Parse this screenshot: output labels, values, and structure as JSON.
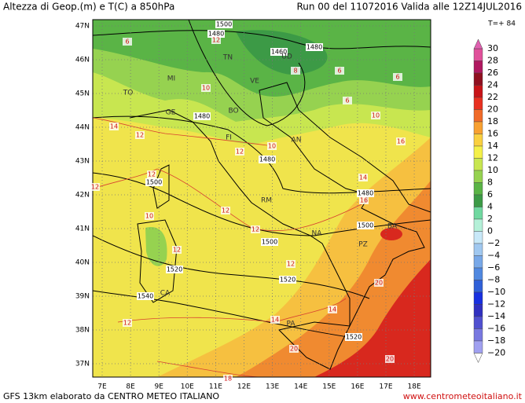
{
  "header": {
    "title": "Altezza di Geop.(m) e T(C) a 850hPa",
    "run": "Run 00 del 11072016  Valida alle 12Z14JUL2016",
    "forecast_step": "T=+ 84"
  },
  "map": {
    "lat_labels": [
      "47N",
      "46N",
      "45N",
      "44N",
      "43N",
      "42N",
      "41N",
      "40N",
      "39N",
      "38N",
      "37N"
    ],
    "lon_labels": [
      "7E",
      "8E",
      "9E",
      "10E",
      "11E",
      "12E",
      "13E",
      "14E",
      "15E",
      "16E",
      "17E",
      "18E"
    ],
    "height_labels": [
      "1500",
      "1480",
      "1460",
      "1480",
      "1480",
      "1480",
      "1500",
      "1480",
      "1500",
      "1500",
      "1520",
      "1520",
      "1540",
      "1520"
    ],
    "temperature_labels": [
      "6",
      "12",
      "8",
      "6",
      "6",
      "6",
      "10",
      "10",
      "16",
      "14",
      "12",
      "12",
      "10",
      "14",
      "12",
      "12",
      "16",
      "10",
      "12",
      "12",
      "12",
      "12",
      "20",
      "12",
      "14",
      "14",
      "20",
      "20",
      "18"
    ],
    "city_labels": [
      "TO",
      "MI",
      "TN",
      "UD",
      "VE",
      "BO",
      "GE",
      "FI",
      "AN",
      "RM",
      "NA",
      "BA",
      "PZ",
      "CA",
      "PA"
    ]
  },
  "legend": {
    "labels": [
      "30",
      "28",
      "26",
      "24",
      "22",
      "20",
      "18",
      "16",
      "14",
      "12",
      "10",
      "8",
      "6",
      "4",
      "2",
      "0",
      "−2",
      "−4",
      "−6",
      "−8",
      "−10",
      "−12",
      "−14",
      "−16",
      "−18",
      "−20"
    ],
    "colors": [
      "#e0509a",
      "#b01860",
      "#901020",
      "#c81418",
      "#e83020",
      "#f06a28",
      "#f8a030",
      "#fad040",
      "#f4f048",
      "#c8e650",
      "#96d250",
      "#5ab446",
      "#3c9a46",
      "#70d8a0",
      "#b4f0d8",
      "#c8e8f8",
      "#a0c8f0",
      "#78a8e8",
      "#5088e0",
      "#3060d8",
      "#1830e0",
      "#3030c0",
      "#5050d0",
      "#7878e0",
      "#a0a0f0"
    ]
  },
  "footer": {
    "source": "GFS 13km elaborato da CENTRO METEO ITALIANO",
    "website": "www.centrometeoitaliano.it"
  }
}
